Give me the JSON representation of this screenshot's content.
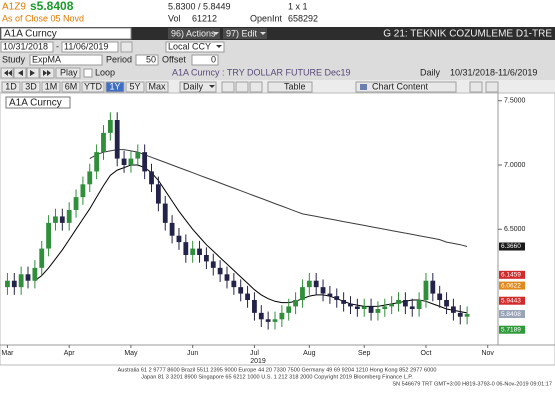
{
  "header": {
    "ticker": "A1Z9",
    "last": "s5.8408",
    "bid_ask": "5.8300 / 5.8449",
    "size": "1 x 1",
    "as_of": "As of Close 05 Novd",
    "vol_label": "Vol",
    "vol": "61212",
    "oi_label": "OpenInt",
    "oi": "658292"
  },
  "toolbar": {
    "security": "A1A Curncy",
    "actions": "96) Actions",
    "edit": "97) Edit",
    "page_title": "G 21: TEKNIK COZUMLEME D1-TRE",
    "start_date": "10/31/2018",
    "dash": "-",
    "end_date": "11/06/2019",
    "currency": "Local CCY",
    "study_label": "Study",
    "study": "ExpMA",
    "period_label": "Period",
    "period": "50",
    "offset_label": "Offset",
    "offset": "0",
    "play": "Play",
    "loop": "Loop",
    "chart_desc": "A1A Curncy : TRY DOLLAR FUTURE Dec19",
    "frequency": "Daily",
    "range": "10/31/2018-11/6/2019",
    "tabs": [
      "1D",
      "3D",
      "1M",
      "6M",
      "YTD",
      "1Y",
      "5Y",
      "Max"
    ],
    "selected_tab": "1Y",
    "freq_menu": "Daily",
    "table": "Table",
    "chart_content": "Chart Content"
  },
  "footer": [
    "Australia 61 2 9777 8600 Brazil 5511 2395 9000 Europe 44 20 7330 7500 Germany 49 69 9204 1210 Hong Kong 852 2977 6000",
    "Japan 81 3 3201 8900     Singapore 65 6212 1000     U.S. 1 212 318 2000     Copyright 2019 Bloomberg Finance L.P.",
    "SN 546679 TRT  GMT+3:00 H819-3793-0 06-Nov-2019 09:01:17"
  ],
  "chart_data": {
    "type": "candlestick",
    "title": "A1A Curncy",
    "year_label": "2019",
    "up_color": "#2f8f3a",
    "down_color": "#23234a",
    "grid": false,
    "categories": [
      "Mar",
      null,
      null,
      null,
      null,
      null,
      null,
      null,
      null,
      "Apr",
      null,
      null,
      null,
      null,
      null,
      null,
      null,
      null,
      "May",
      null,
      null,
      null,
      null,
      null,
      null,
      null,
      null,
      "Jun",
      null,
      null,
      null,
      null,
      null,
      null,
      null,
      null,
      "Jul",
      null,
      null,
      null,
      null,
      null,
      null,
      null,
      "Aug",
      null,
      null,
      null,
      null,
      null,
      null,
      null,
      "Sep",
      null,
      null,
      null,
      null,
      null,
      null,
      null,
      null,
      "Oct",
      null,
      null,
      null,
      null,
      null,
      null,
      null,
      null,
      "Nov",
      null
    ],
    "open": [
      6.05,
      6.1,
      6.05,
      6.15,
      6.1,
      6.2,
      6.35,
      6.55,
      6.6,
      6.55,
      6.65,
      6.75,
      6.85,
      6.95,
      7.1,
      7.25,
      7.35,
      7.05,
      7.0,
      7.05,
      7.1,
      6.95,
      6.85,
      6.7,
      6.55,
      6.45,
      6.4,
      6.3,
      6.35,
      6.3,
      6.25,
      6.2,
      6.15,
      6.1,
      6.05,
      6.0,
      5.95,
      5.85,
      5.8,
      5.78,
      5.8,
      5.85,
      5.9,
      5.95,
      6.05,
      6.1,
      6.05,
      6.0,
      5.98,
      5.95,
      5.92,
      5.9,
      5.88,
      5.9,
      5.85,
      5.88,
      5.9,
      5.92,
      5.95,
      5.9,
      5.88,
      5.95,
      6.1,
      6.0,
      5.95,
      5.9,
      5.85,
      5.82,
      null,
      null,
      null,
      null
    ],
    "high": [
      6.16,
      6.16,
      6.21,
      6.21,
      6.26,
      6.41,
      6.61,
      6.66,
      6.66,
      6.71,
      6.81,
      6.91,
      7.01,
      7.16,
      7.31,
      7.41,
      7.41,
      7.11,
      7.11,
      7.16,
      7.16,
      7.01,
      6.91,
      6.76,
      6.61,
      6.51,
      6.46,
      6.41,
      6.41,
      6.36,
      6.31,
      6.26,
      6.21,
      6.16,
      6.11,
      6.06,
      6.01,
      5.91,
      5.86,
      5.86,
      5.91,
      5.96,
      6.01,
      6.11,
      6.16,
      6.16,
      6.11,
      6.06,
      6.04,
      6.01,
      5.98,
      5.96,
      5.96,
      5.96,
      5.94,
      5.96,
      5.98,
      6.01,
      6.01,
      5.96,
      6.01,
      6.16,
      6.16,
      6.06,
      6.01,
      5.96,
      5.91,
      5.9,
      null,
      null,
      null,
      null
    ],
    "low": [
      5.99,
      5.99,
      5.99,
      6.04,
      6.04,
      6.14,
      6.29,
      6.49,
      6.49,
      6.49,
      6.59,
      6.69,
      6.79,
      6.89,
      7.04,
      7.19,
      6.99,
      6.94,
      6.94,
      6.99,
      6.89,
      6.79,
      6.64,
      6.49,
      6.39,
      6.34,
      6.24,
      6.24,
      6.24,
      6.19,
      6.14,
      6.09,
      6.04,
      5.99,
      5.94,
      5.89,
      5.79,
      5.74,
      5.72,
      5.72,
      5.74,
      5.79,
      5.84,
      5.89,
      5.99,
      5.99,
      5.94,
      5.92,
      5.89,
      5.86,
      5.84,
      5.82,
      5.82,
      5.79,
      5.79,
      5.82,
      5.84,
      5.86,
      5.84,
      5.82,
      5.82,
      5.89,
      5.94,
      5.89,
      5.84,
      5.79,
      5.76,
      5.76,
      null,
      null,
      null,
      null
    ],
    "close": [
      6.1,
      6.05,
      6.15,
      6.1,
      6.2,
      6.35,
      6.55,
      6.6,
      6.55,
      6.65,
      6.75,
      6.85,
      6.95,
      7.1,
      7.25,
      7.35,
      7.05,
      7.0,
      7.05,
      7.1,
      6.95,
      6.85,
      6.7,
      6.55,
      6.45,
      6.4,
      6.3,
      6.35,
      6.3,
      6.25,
      6.2,
      6.15,
      6.1,
      6.05,
      6.0,
      5.95,
      5.85,
      5.8,
      5.78,
      5.8,
      5.85,
      5.9,
      5.95,
      6.05,
      6.1,
      6.05,
      6.0,
      5.98,
      5.95,
      5.92,
      5.9,
      5.88,
      5.9,
      5.85,
      5.88,
      5.9,
      5.92,
      5.95,
      5.9,
      5.88,
      5.95,
      6.1,
      6.0,
      5.95,
      5.9,
      5.85,
      5.82,
      5.8408,
      null,
      null,
      null,
      null
    ],
    "series": [
      {
        "color": "#3c3c3c",
        "values": [
          null,
          null,
          null,
          null,
          null,
          null,
          null,
          null,
          null,
          null,
          null,
          null,
          7.05,
          7.08,
          7.1,
          7.11,
          7.12,
          7.12,
          7.11,
          7.1,
          7.08,
          7.06,
          7.04,
          7.02,
          7.0,
          6.98,
          6.96,
          6.94,
          6.92,
          6.9,
          6.88,
          6.86,
          6.84,
          6.82,
          6.8,
          6.78,
          6.76,
          6.74,
          6.72,
          6.7,
          6.68,
          6.66,
          6.64,
          6.62,
          6.61,
          6.6,
          6.59,
          6.58,
          6.57,
          6.56,
          6.55,
          6.54,
          6.53,
          6.52,
          6.51,
          6.5,
          6.49,
          6.48,
          6.47,
          6.46,
          6.45,
          6.44,
          6.43,
          6.42,
          6.4,
          6.39,
          6.38,
          6.366,
          null,
          null,
          null,
          null
        ]
      },
      {
        "color": "#000000",
        "values": [
          null,
          null,
          null,
          null,
          6.1,
          6.14,
          6.2,
          6.27,
          6.34,
          6.42,
          6.5,
          6.58,
          6.66,
          6.75,
          6.84,
          6.92,
          6.96,
          6.98,
          7.0,
          7.0,
          6.98,
          6.94,
          6.88,
          6.8,
          6.72,
          6.64,
          6.57,
          6.5,
          6.44,
          6.38,
          6.33,
          6.28,
          6.23,
          6.18,
          6.13,
          6.08,
          6.03,
          5.99,
          5.96,
          5.94,
          5.93,
          5.93,
          5.94,
          5.96,
          5.98,
          5.99,
          5.99,
          5.98,
          5.96,
          5.94,
          5.92,
          5.91,
          5.9,
          5.9,
          5.9,
          5.91,
          5.92,
          5.93,
          5.94,
          5.95,
          5.95,
          5.94,
          5.92,
          5.9,
          5.88,
          5.87,
          5.86,
          5.85,
          null,
          null,
          null,
          null
        ]
      }
    ],
    "ylim": [
      5.6,
      7.56
    ],
    "yticks": [
      {
        "value": 6.5,
        "label": "6.5000"
      },
      {
        "value": 7.0,
        "label": "7.0000"
      },
      {
        "value": 7.5,
        "label": "7.5000"
      }
    ],
    "price_labels": [
      {
        "value": 6.366,
        "label": "6.3660",
        "color": "#1a1a1a"
      },
      {
        "value": 6.1459,
        "label": "6.1459",
        "color": "#d22b2b"
      },
      {
        "value": 6.0622,
        "label": "6.0622",
        "color": "#e08a1e"
      },
      {
        "value": 5.9443,
        "label": "5.9443",
        "color": "#d22b2b"
      },
      {
        "value": 5.8408,
        "label": "5.8408",
        "color": "#9aa4b8"
      },
      {
        "value": 5.7189,
        "label": "5.7189",
        "color": "#2f9a3a"
      }
    ]
  }
}
